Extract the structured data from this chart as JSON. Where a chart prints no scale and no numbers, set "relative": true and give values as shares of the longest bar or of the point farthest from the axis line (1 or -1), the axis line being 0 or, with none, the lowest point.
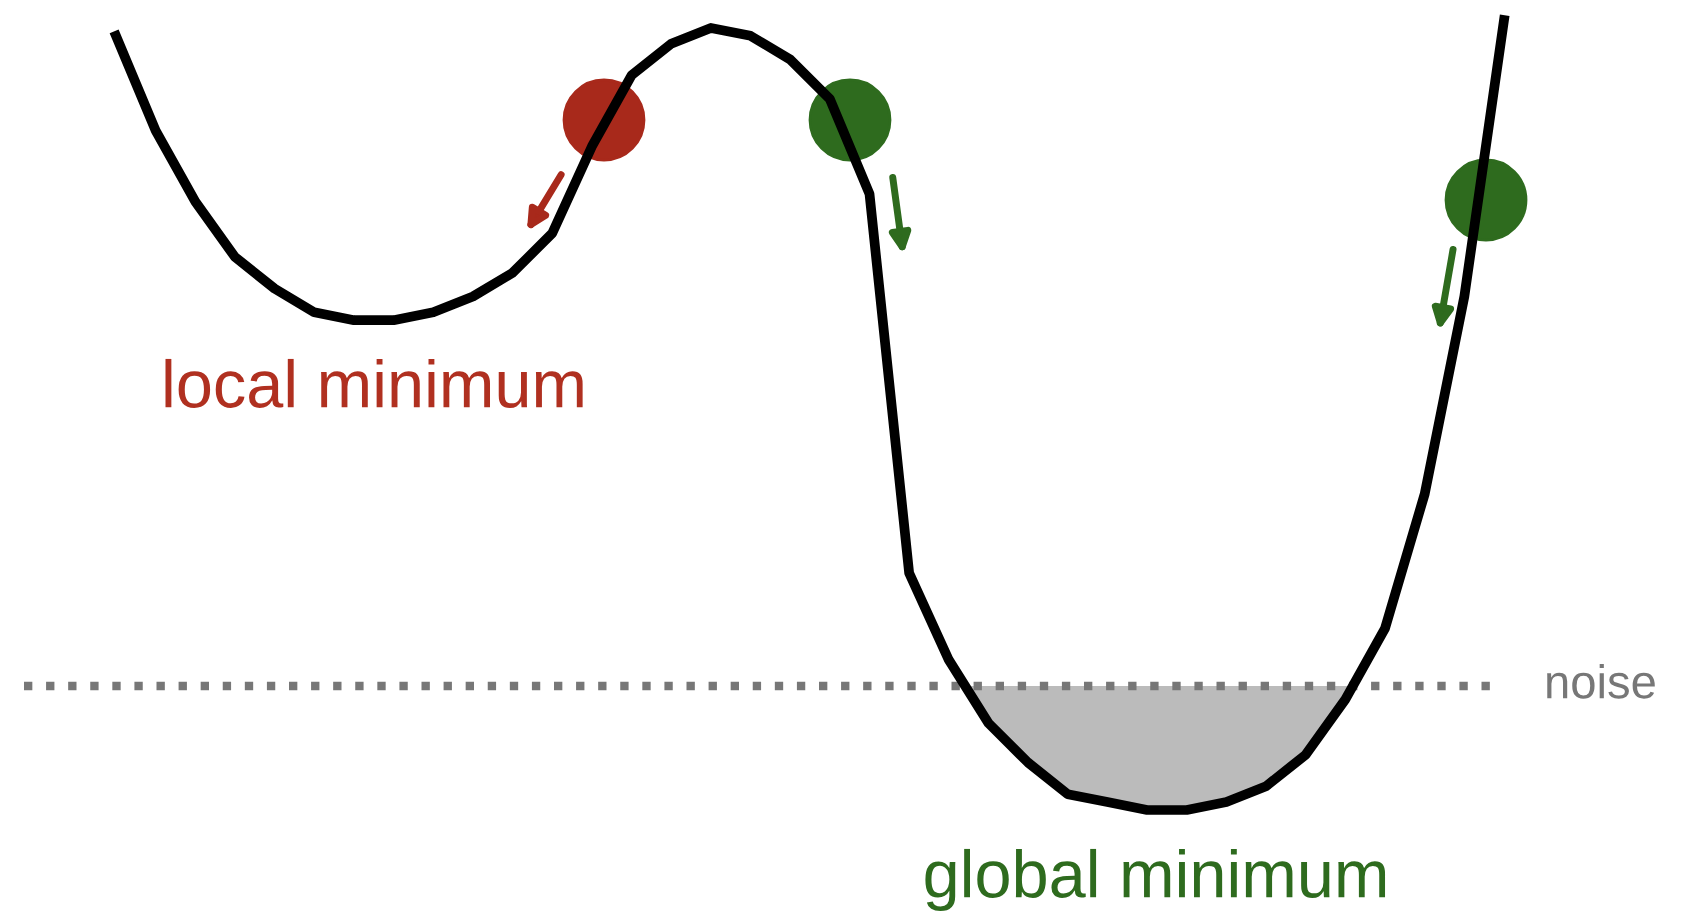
{
  "chart_data": {
    "type": "line",
    "relative": true,
    "categories": [
      null,
      null,
      null,
      null,
      null,
      null,
      null,
      null,
      null,
      null,
      null,
      null,
      null,
      null,
      null,
      null,
      null,
      null,
      null,
      null,
      null,
      null,
      null,
      null,
      null,
      null,
      null,
      null,
      null,
      null,
      null,
      null,
      null,
      null,
      null,
      null
    ],
    "series": [
      {
        "color": "#000000",
        "values": [
          0.98,
          0.86,
          0.77,
          0.7,
          0.66,
          0.63,
          0.62,
          0.62,
          0.63,
          0.65,
          0.68,
          0.73,
          0.84,
          0.93,
          0.97,
          0.99,
          0.98,
          0.95,
          0.9,
          0.78,
          0.3,
          0.19,
          0.11,
          0.06,
          0.02,
          0.01,
          0,
          0,
          0.01,
          0.03,
          0.07,
          0.14,
          0.23,
          0.4,
          0.65,
          1.0
        ]
      }
    ],
    "ref_lines": [
      {
        "axis": "y",
        "value": 0.157,
        "label": "noise",
        "color": "#777777",
        "line_style": "dotted"
      }
    ],
    "annotations": [
      "local minimum",
      "global minimum"
    ],
    "marker": "none",
    "line_style": "solid"
  }
}
